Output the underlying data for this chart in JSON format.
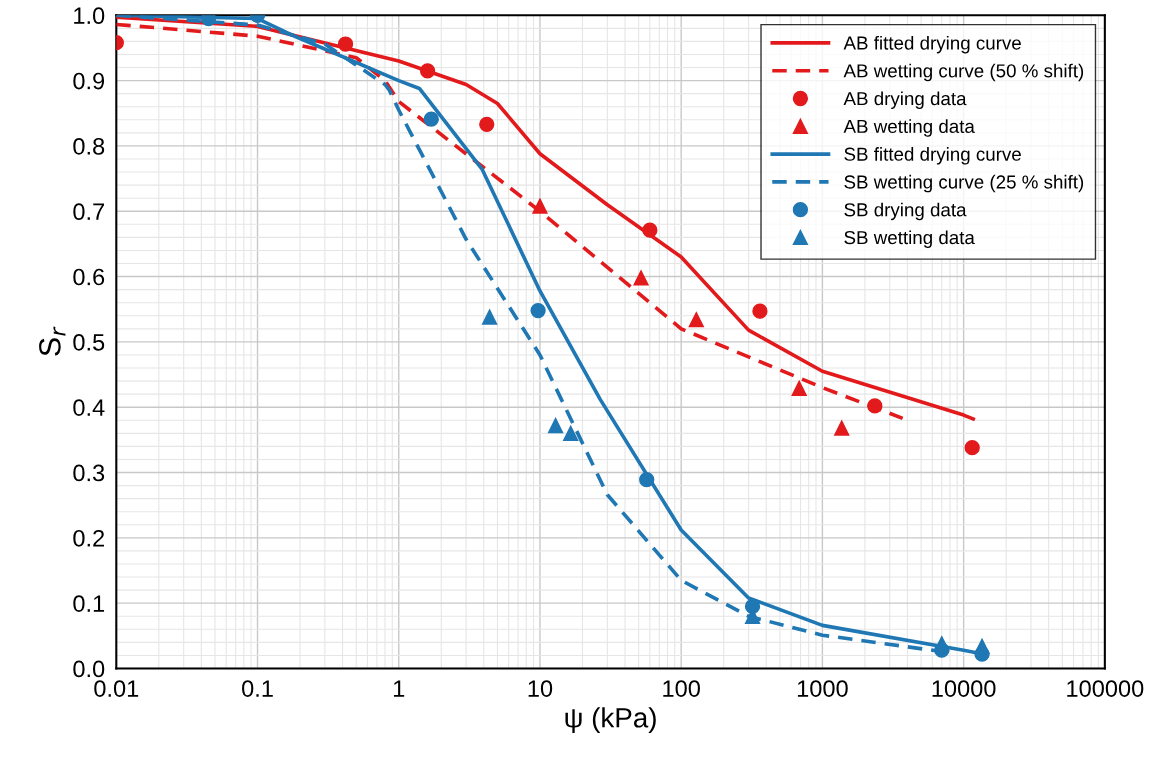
{
  "chart_data": {
    "type": "line",
    "xlabel": "ψ (kPa)",
    "ylabel": "S$_{r}$",
    "log": "x",
    "grid": true,
    "legend": "top right",
    "xlim": [
      0.01,
      100000
    ],
    "xticks": [
      0.01,
      0.1,
      1,
      10,
      100,
      1000,
      10000,
      100000
    ],
    "ylim": [
      0,
      1
    ],
    "yticks": [
      {
        "value": 0,
        "label": "0.0"
      },
      {
        "value": 0.1,
        "label": "0.1"
      },
      {
        "value": 0.2,
        "label": "0.2"
      },
      {
        "value": 0.3,
        "label": "0.3"
      },
      {
        "value": 0.4,
        "label": "0.4"
      },
      {
        "value": 0.5,
        "label": "0.5"
      },
      {
        "value": 0.6,
        "label": "0.6"
      },
      {
        "value": 0.7,
        "label": "0.7"
      },
      {
        "value": 0.8,
        "label": "0.8"
      },
      {
        "value": 0.9,
        "label": "0.9"
      },
      {
        "value": 1,
        "label": "1.0"
      }
    ],
    "series": [
      {
        "name": "AB fitted drying curve",
        "line_style": "solid",
        "marker": "none",
        "color": "#e31a1c",
        "x": [
          0.01,
          0.1,
          1,
          3,
          5,
          10,
          30,
          100,
          300,
          1000,
          10000,
          11700
        ],
        "values": [
          0.997,
          0.983,
          0.93,
          0.894,
          0.865,
          0.788,
          0.71,
          0.63,
          0.518,
          0.455,
          0.388,
          0.382
        ]
      },
      {
        "name": "AB wetting curve (50 % shift)",
        "line_style": "dashed",
        "marker": "none",
        "color": "#e31a1c",
        "x": [
          0.01,
          0.1,
          0.5,
          0.8,
          1,
          10,
          100,
          1000,
          3700
        ],
        "values": [
          0.986,
          0.968,
          0.935,
          0.9,
          0.868,
          0.7,
          0.52,
          0.43,
          0.383
        ]
      },
      {
        "name": "AB drying data",
        "type": "scatter",
        "marker": "circle",
        "color": "#e31a1c",
        "x": [
          0.01,
          0.42,
          1.6,
          4.2,
          60,
          361,
          2350,
          11500
        ],
        "values": [
          0.958,
          0.956,
          0.915,
          0.833,
          0.671,
          0.547,
          0.402,
          0.338
        ]
      },
      {
        "name": "AB wetting data",
        "type": "scatter",
        "marker": "triangle",
        "color": "#e31a1c",
        "x": [
          10,
          52,
          128,
          685,
          1370
        ],
        "values": [
          0.708,
          0.598,
          0.534,
          0.429,
          0.368
        ]
      },
      {
        "name": "SB fitted drying curve",
        "line_style": "solid",
        "marker": "none",
        "color": "#1f77b4",
        "x": [
          0.01,
          0.1,
          0.17,
          1,
          1.4,
          3.9,
          10,
          26.7,
          100,
          300,
          1000,
          10000,
          13800
        ],
        "values": [
          1.0,
          0.995,
          0.971,
          0.9,
          0.888,
          0.764,
          0.578,
          0.412,
          0.212,
          0.108,
          0.066,
          0.028,
          0.022
        ]
      },
      {
        "name": "SB wetting curve (25 % shift)",
        "line_style": "dashed",
        "marker": "none",
        "color": "#1f77b4",
        "x": [
          0.01,
          0.1,
          0.3,
          0.8,
          0.86,
          1,
          3,
          10,
          30,
          100,
          300,
          1000,
          7000
        ],
        "values": [
          1.0,
          0.985,
          0.956,
          0.894,
          0.885,
          0.855,
          0.657,
          0.48,
          0.266,
          0.135,
          0.08,
          0.051,
          0.026
        ]
      },
      {
        "name": "SB drying data",
        "type": "scatter",
        "marker": "circle",
        "color": "#1f77b4",
        "x": [
          0.045,
          0.1,
          1.7,
          9.7,
          57,
          320,
          7000,
          13500
        ],
        "values": [
          0.995,
          1.0,
          0.841,
          0.548,
          0.289,
          0.095,
          0.028,
          0.022
        ]
      },
      {
        "name": "SB wetting data",
        "type": "scatter",
        "marker": "triangle",
        "color": "#1f77b4",
        "x": [
          4.4,
          12.9,
          16.5,
          320,
          7000,
          13500
        ],
        "values": [
          0.538,
          0.372,
          0.36,
          0.08,
          0.038,
          0.034
        ]
      }
    ]
  }
}
